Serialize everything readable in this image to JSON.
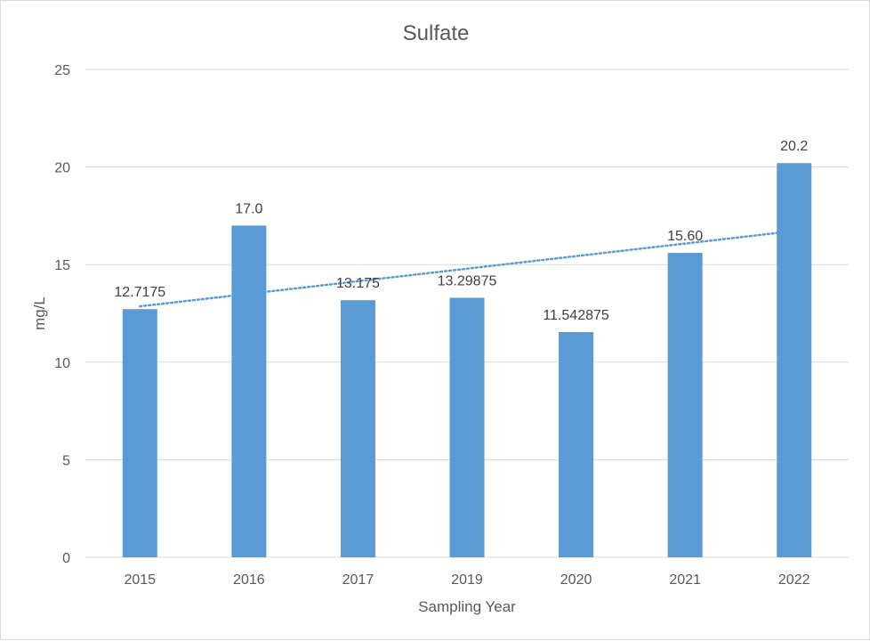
{
  "chart_data": {
    "type": "bar",
    "title": "Sulfate",
    "xlabel": "Sampling Year",
    "ylabel": "mg/L",
    "categories": [
      "2015",
      "2016",
      "2017",
      "2019",
      "2020",
      "2021",
      "2022"
    ],
    "values": [
      12.7175,
      17.0,
      13.175,
      13.29875,
      11.542875,
      15.6,
      20.2
    ],
    "data_labels": [
      "12.7175",
      "17.0",
      "13.175",
      "13.29875",
      "11.542875",
      "15.60",
      "20.2"
    ],
    "ylim": [
      0,
      25
    ],
    "yticks": [
      0,
      5,
      10,
      15,
      20,
      25
    ],
    "ytick_labels": [
      "0",
      "5",
      "10",
      "15",
      "20",
      "25"
    ],
    "grid": "horizontal",
    "legend": "none",
    "trendline": {
      "type": "linear",
      "style": "dotted"
    },
    "colors": {
      "bar": "#5b9bd5",
      "trendline": "#5b9bd5",
      "grid": "#d9d9d9",
      "text": "#595959"
    }
  }
}
